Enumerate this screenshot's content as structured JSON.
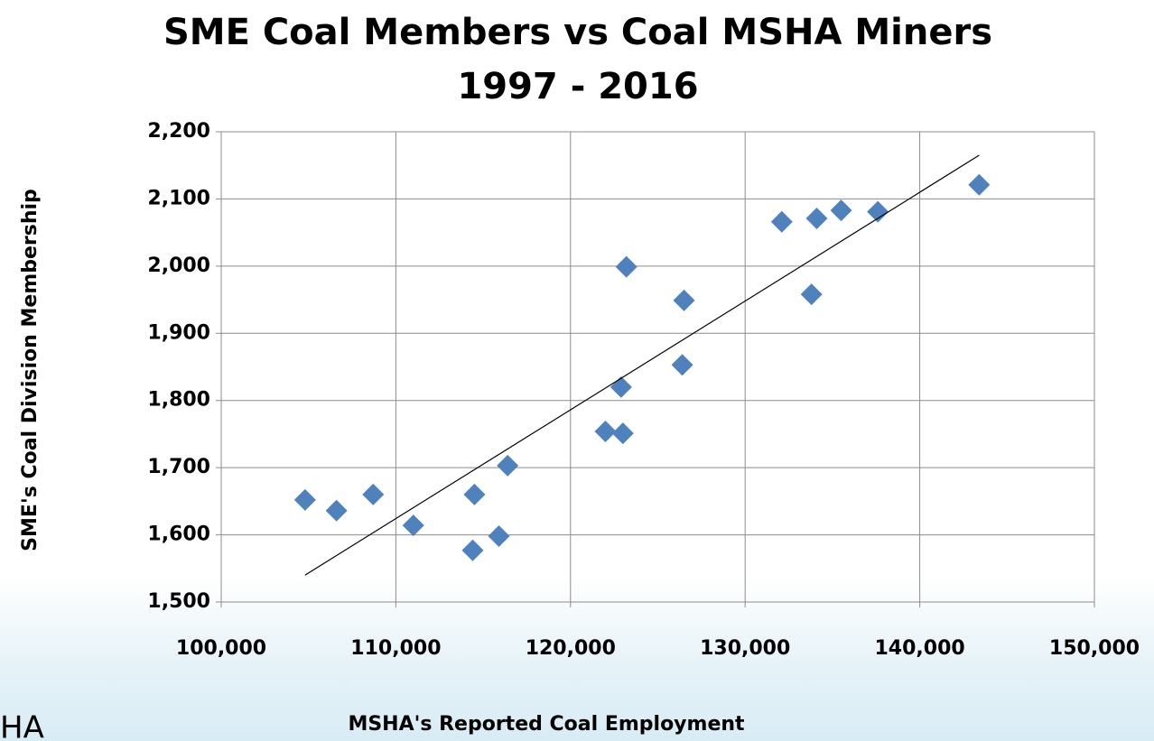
{
  "chart_data": {
    "type": "scatter",
    "title": "SME Coal Members vs Coal MSHA Miners",
    "subtitle": "1997 - 2016",
    "x_label": "MSHA's Reported Coal Employment",
    "y_label": "SME's Coal Division Membership",
    "annotations": [
      "HA"
    ],
    "series": [
      {
        "name": "SME Coal Members",
        "color": "#4f81bd",
        "x": [
          104800,
          106600,
          108700,
          111000,
          114400,
          114500,
          115900,
          116400,
          122000,
          123000,
          122900,
          123200,
          126400,
          126500,
          132100,
          133800,
          134100,
          135500,
          137600,
          143400
        ],
        "values": [
          1652,
          1636,
          1660,
          1614,
          1577,
          1660,
          1598,
          1703,
          1754,
          1751,
          1820,
          1999,
          1853,
          1949,
          2066,
          1958,
          2071,
          2083,
          2081,
          2121
        ]
      }
    ],
    "trendline": {
      "color": "#000000",
      "x": [
        104800,
        143400
      ],
      "values": [
        1540,
        2165
      ]
    },
    "xlim": [
      100000,
      150000
    ],
    "xticks": [
      {
        "value": 100000,
        "label": "100,000"
      },
      {
        "value": 110000,
        "label": "110,000"
      },
      {
        "value": 120000,
        "label": "120,000"
      },
      {
        "value": 130000,
        "label": "130,000"
      },
      {
        "value": 140000,
        "label": "140,000"
      },
      {
        "value": 150000,
        "label": "150,000"
      }
    ],
    "ylim": [
      1500,
      2200
    ],
    "yticks": [
      {
        "value": 1500,
        "label": "1,500"
      },
      {
        "value": 1600,
        "label": "1,600"
      },
      {
        "value": 1700,
        "label": "1,700"
      },
      {
        "value": 1800,
        "label": "1,800"
      },
      {
        "value": 1900,
        "label": "1,900"
      },
      {
        "value": 2000,
        "label": "2,000"
      },
      {
        "value": 2100,
        "label": "2,100"
      },
      {
        "value": 2200,
        "label": "2,200"
      }
    ],
    "grid": true
  }
}
